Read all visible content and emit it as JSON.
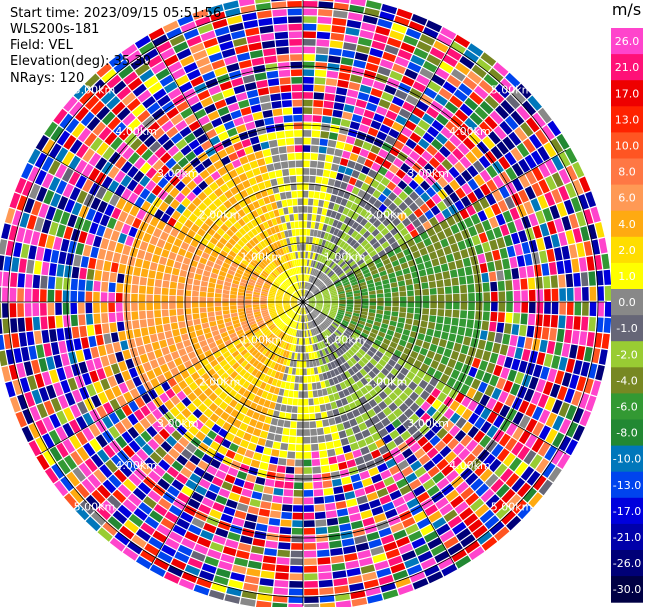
{
  "header": {
    "start_time": "Start time: 2023/09/15 05:51:56",
    "instrument": "WLS200s-181",
    "field": "Field: VEL",
    "elevation": "Elevation(deg): 35.30",
    "nrays": "NRays: 120"
  },
  "range_ring_labels": [
    "1.00km",
    "2.00km",
    "3.00km",
    "4.00km",
    "5.00km"
  ],
  "colorbar": {
    "unit": "m/s",
    "tick_labels": [
      "26.0",
      "21.0",
      "17.0",
      "13.0",
      "10.0",
      "8.0",
      "6.0",
      "4.0",
      "2.0",
      "1.0",
      "0.0",
      "-1.0",
      "-2.0",
      "-4.0",
      "-6.0",
      "-8.0",
      "-10.0",
      "-13.0",
      "-17.0",
      "-21.0",
      "-26.0",
      "-30.0"
    ],
    "colors": [
      "#ff44cc",
      "#ff1177",
      "#ee0000",
      "#ff2200",
      "#ff5522",
      "#ff7744",
      "#ff9955",
      "#ffaa11",
      "#ffdd00",
      "#ffff00",
      "#888888",
      "#666677",
      "#99cc33",
      "#778822",
      "#339933",
      "#228833",
      "#0077bb",
      "#0044ee",
      "#0000dd",
      "#0000aa",
      "#000077",
      "#000044"
    ]
  },
  "chart_data": {
    "type": "ppi",
    "title": "",
    "field": "VEL",
    "unit": "m/s",
    "n_rays": 120,
    "range_rings_km": [
      1,
      2,
      3,
      4,
      5
    ],
    "value_range": [
      -30,
      30
    ],
    "sectors": [
      {
        "azimuth_from": 0,
        "azimuth_to": 15,
        "near_km": 2.5,
        "velocity": 0.0
      },
      {
        "azimuth_from": 15,
        "azimuth_to": 60,
        "near_km": 2.0,
        "velocity": -2.0
      },
      {
        "azimuth_from": 60,
        "azimuth_to": 120,
        "near_km": 3.0,
        "velocity": -6.0
      },
      {
        "azimuth_from": 120,
        "azimuth_to": 165,
        "near_km": 2.5,
        "velocity": -2.0
      },
      {
        "azimuth_from": 165,
        "azimuth_to": 195,
        "near_km": 2.5,
        "velocity": 0.0
      },
      {
        "azimuth_from": 195,
        "azimuth_to": 240,
        "near_km": 2.5,
        "velocity": 2.0
      },
      {
        "azimuth_from": 240,
        "azimuth_to": 300,
        "near_km": 3.0,
        "velocity": 4.0
      },
      {
        "azimuth_from": 300,
        "azimuth_to": 345,
        "near_km": 2.5,
        "velocity": 2.0
      },
      {
        "azimuth_from": 345,
        "azimuth_to": 360,
        "near_km": 2.5,
        "velocity": 0.0
      }
    ]
  }
}
